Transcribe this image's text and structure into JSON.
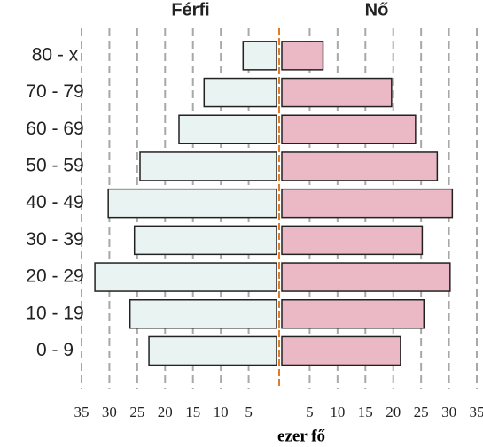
{
  "chart_data": {
    "type": "pyramid",
    "categories": [
      "80 - x",
      "70 - 79",
      "60 - 69",
      "50 - 59",
      "40 - 49",
      "30 - 39",
      "20 - 29",
      "10 - 19",
      "0 - 9"
    ],
    "series": [
      {
        "name": "Férfi",
        "color": "#e9f3f2",
        "values": [
          6,
          13,
          17.5,
          24.5,
          30.2,
          25.5,
          32.6,
          26.3,
          22.9
        ]
      },
      {
        "name": "Nő",
        "color": "#ebb9c6",
        "values": [
          7.4,
          19.7,
          24,
          27.9,
          30.6,
          25.2,
          30.2,
          25.5,
          21.3
        ]
      }
    ],
    "xlim": [
      0,
      35
    ],
    "xticks": [
      5,
      10,
      15,
      20,
      25,
      30,
      35
    ],
    "xlabel": "ezer fő",
    "grid": true
  }
}
